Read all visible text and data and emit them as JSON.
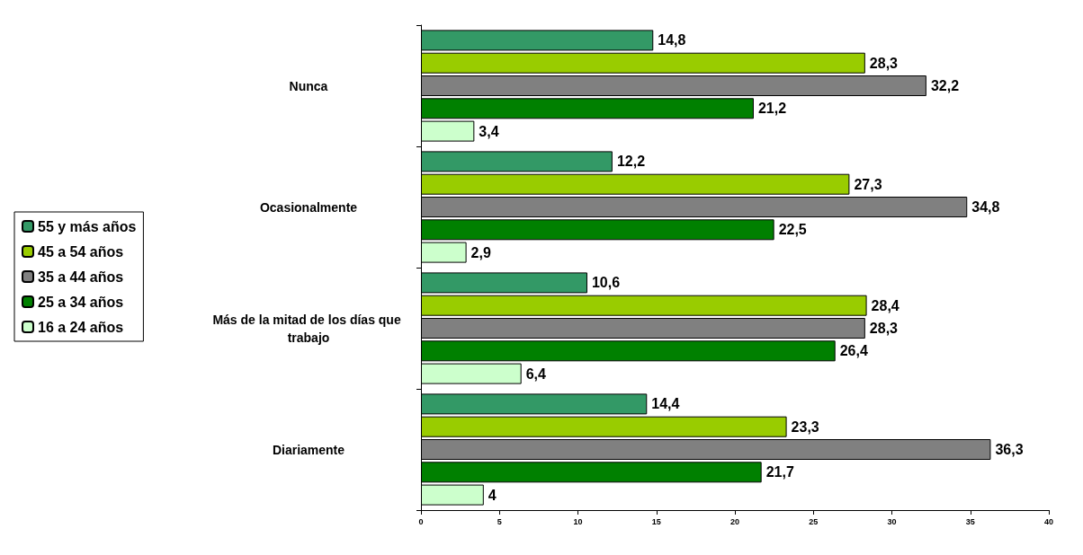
{
  "chart_data": {
    "type": "bar",
    "orientation": "horizontal",
    "categories": [
      "Nunca",
      "Ocasionalmente",
      "Más de la mitad de los días que trabajo",
      "Diariamente"
    ],
    "series": [
      {
        "name": "55 y más años",
        "color": "#339966",
        "values": [
          14.8,
          12.2,
          10.6,
          14.4
        ],
        "value_labels": [
          "14,8",
          "12,2",
          "10,6",
          "14,4"
        ]
      },
      {
        "name": "45 a 54 años",
        "color": "#99cc00",
        "values": [
          28.3,
          27.3,
          28.4,
          23.3
        ],
        "value_labels": [
          "28,3",
          "27,3",
          "28,4",
          "23,3"
        ]
      },
      {
        "name": "35 a 44 años",
        "color": "#808080",
        "values": [
          32.2,
          34.8,
          28.3,
          36.3
        ],
        "value_labels": [
          "32,2",
          "34,8",
          "28,3",
          "36,3"
        ]
      },
      {
        "name": "25 a 34 años",
        "color": "#008000",
        "values": [
          21.2,
          22.5,
          26.4,
          21.7
        ],
        "value_labels": [
          "21,2",
          "22,5",
          "26,4",
          "21,7"
        ]
      },
      {
        "name": "16 a 24 años",
        "color": "#ccffcc",
        "values": [
          3.4,
          2.9,
          6.4,
          4
        ],
        "value_labels": [
          "3,4",
          "2,9",
          "6,4",
          "4"
        ]
      }
    ],
    "xlim": [
      0,
      40
    ],
    "xticks": [
      0,
      5,
      10,
      15,
      20,
      25,
      30,
      35,
      40
    ],
    "grid": false,
    "legend": "left"
  }
}
